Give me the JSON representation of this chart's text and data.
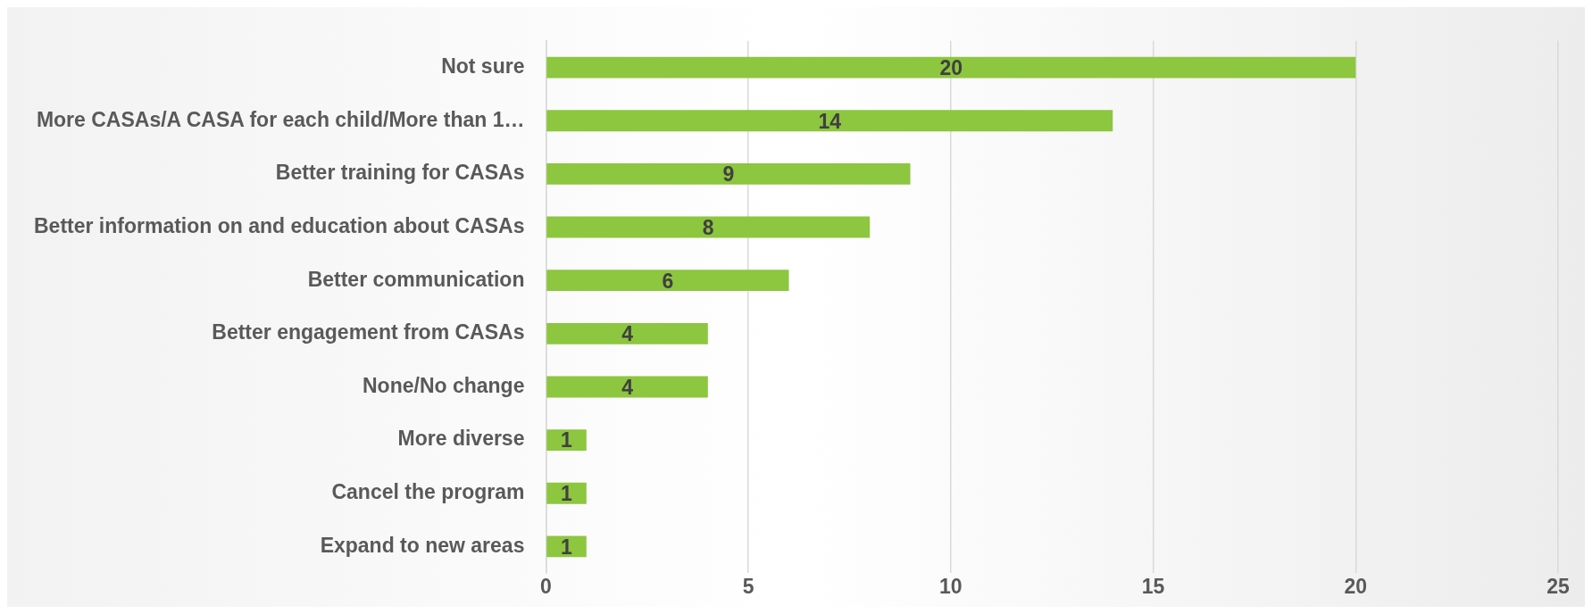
{
  "chart_data": {
    "type": "bar",
    "orientation": "horizontal",
    "categories": [
      "Not sure",
      "More CASAs/A CASA for each child/More than 1…",
      "Better training for CASAs",
      "Better information on and education about CASAs",
      "Better communication",
      "Better engagement from CASAs",
      "None/No change",
      "More diverse",
      "Cancel the program",
      "Expand to new areas"
    ],
    "values": [
      20,
      14,
      9,
      8,
      6,
      4,
      4,
      1,
      1,
      1
    ],
    "color": "#8dc63f",
    "xlim": [
      0,
      25
    ],
    "xticks": [
      0,
      5,
      10,
      15,
      20,
      25
    ],
    "grid": "x",
    "data_labels": true,
    "legend": false
  }
}
